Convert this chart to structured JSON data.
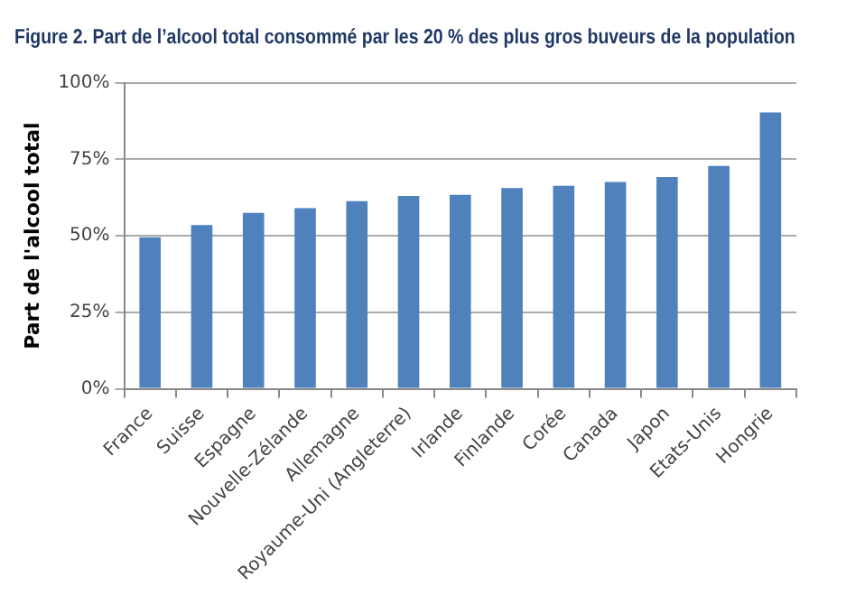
{
  "chart_data": {
    "type": "bar",
    "title": "Figure 2. Part de l’alcool total consommé par les 20 % des plus gros buveurs de la population",
    "ylabel": "Part de l'alcool total",
    "categories": [
      "France",
      "Suisse",
      "Espagne",
      "Nouvelle-Zélande",
      "Allemagne",
      "Royaume-Uni (Angleterre)",
      "Irlande",
      "Finlande",
      "Corée",
      "Canada",
      "Japon",
      "Etats-Unis",
      "Hongrie"
    ],
    "values": [
      49.5,
      53.5,
      57.5,
      59,
      61.3,
      63,
      63.4,
      65.6,
      66.3,
      67.6,
      69.2,
      72.8,
      90.3
    ],
    "color": "#4f81bd",
    "ylim": [
      0,
      100
    ],
    "yticks": [
      {
        "value": 0,
        "label": "0%"
      },
      {
        "value": 25,
        "label": "25%"
      },
      {
        "value": 50,
        "label": "50%"
      },
      {
        "value": 75,
        "label": "75%"
      },
      {
        "value": 100,
        "label": "100%"
      }
    ],
    "grid": "y",
    "legend": false
  }
}
